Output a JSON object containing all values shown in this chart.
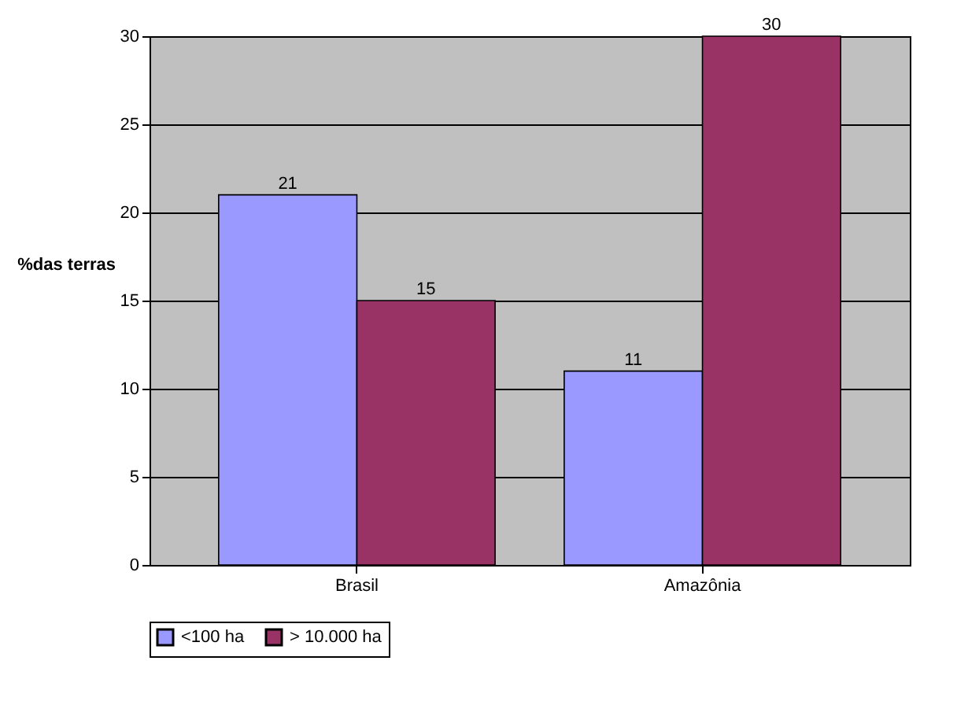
{
  "chart_data": {
    "type": "bar",
    "categories": [
      "Brasil",
      "Amazônia"
    ],
    "series": [
      {
        "name": "<100 ha",
        "color": "#9999ff",
        "values": [
          21,
          11
        ]
      },
      {
        "name": "> 10.000 ha",
        "color": "#993366",
        "values": [
          15,
          30
        ]
      }
    ],
    "ylabel": "%das terras",
    "ylim": [
      0,
      30
    ],
    "yticks": [
      0,
      5,
      10,
      15,
      20,
      25,
      30
    ],
    "grid": "y",
    "data_labels": true,
    "legend": "bottom"
  }
}
